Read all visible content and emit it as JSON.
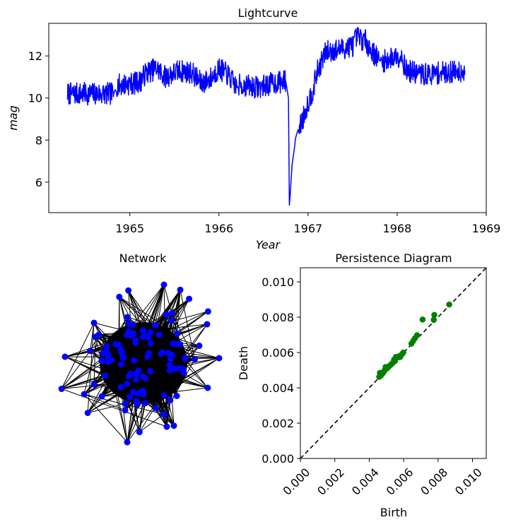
{
  "colors": {
    "lightcurve": "#0000ff",
    "network_node": "#0000ff",
    "network_edge": "#000000",
    "persistence_point": "#008000",
    "diagonal": "#000000"
  },
  "chart_data": [
    {
      "type": "line",
      "title": "Lightcurve",
      "xlabel": "Year",
      "ylabel": "mag",
      "y_inverted": true,
      "xlim": [
        1964.09,
        1969.0
      ],
      "ylim": [
        13.55,
        4.55
      ],
      "xticks": [
        1965,
        1966,
        1967,
        1968,
        1969
      ],
      "xtick_labels": [
        "1965",
        "1966",
        "1967",
        "1968",
        "1969"
      ],
      "yticks": [
        6,
        8,
        10,
        12
      ],
      "ytick_labels": [
        "6",
        "8",
        "10",
        "12"
      ],
      "grid": false,
      "series": [
        {
          "x": [
            1964.3,
            1964.82,
            1964.85,
            1965.05,
            1965.12,
            1965.18,
            1965.3,
            1965.4,
            1965.55,
            1965.7,
            1965.8,
            1965.9,
            1966.0,
            1966.1,
            1966.2,
            1966.22,
            1966.3,
            1966.45,
            1966.6,
            1966.75,
            1966.78,
            1966.79,
            1966.8,
            1966.82,
            1966.84,
            1966.86,
            1966.88,
            1966.9,
            1966.95,
            1967.0,
            1967.05,
            1967.1,
            1967.2,
            1967.35,
            1967.5,
            1967.55,
            1967.65,
            1967.7,
            1967.8,
            1967.82,
            1968.0,
            1968.05,
            1968.1,
            1968.3,
            1968.5,
            1968.76
          ],
          "y": [
            10.2,
            10.2,
            10.6,
            10.7,
            10.8,
            11.2,
            11.4,
            11.0,
            11.3,
            11.2,
            10.7,
            10.9,
            11.4,
            11.1,
            10.5,
            10.6,
            10.6,
            10.5,
            10.7,
            10.8,
            10.0,
            4.9,
            5.4,
            6.8,
            7.4,
            8.1,
            8.4,
            8.6,
            9.1,
            9.8,
            10.3,
            11.2,
            12.2,
            12.3,
            12.5,
            12.9,
            12.7,
            12.3,
            11.8,
            11.7,
            12.0,
            12.0,
            11.3,
            11.1,
            11.2,
            11.3
          ],
          "scatter_amplitude": 0.3
        }
      ]
    },
    {
      "type": "network",
      "title": "Network",
      "node_count": 110,
      "edge_count": 900
    },
    {
      "type": "scatter",
      "title": "Persistence Diagram",
      "xlabel": "Birth",
      "ylabel": "Death",
      "xlim": [
        0,
        0.0108
      ],
      "ylim": [
        0,
        0.0108
      ],
      "xticks": [
        0,
        0.002,
        0.004,
        0.006,
        0.008,
        0.01
      ],
      "xtick_labels": [
        "0.000",
        "0.002",
        "0.004",
        "0.006",
        "0.008",
        "0.010"
      ],
      "yticks": [
        0,
        0.002,
        0.004,
        0.006,
        0.008,
        0.01
      ],
      "ytick_labels": [
        "0.000",
        "0.002",
        "0.004",
        "0.006",
        "0.008",
        "0.010"
      ],
      "diagonal": true,
      "points": [
        {
          "birth": 0.00865,
          "death": 0.00872
        },
        {
          "birth": 0.00778,
          "death": 0.00813
        },
        {
          "birth": 0.00775,
          "death": 0.00785
        },
        {
          "birth": 0.0071,
          "death": 0.00787
        },
        {
          "birth": 0.00678,
          "death": 0.00698
        },
        {
          "birth": 0.00665,
          "death": 0.0068
        },
        {
          "birth": 0.00655,
          "death": 0.00665
        },
        {
          "birth": 0.00645,
          "death": 0.0065
        },
        {
          "birth": 0.00598,
          "death": 0.006
        },
        {
          "birth": 0.0059,
          "death": 0.0059
        },
        {
          "birth": 0.0058,
          "death": 0.00575
        },
        {
          "birth": 0.00575,
          "death": 0.0058
        },
        {
          "birth": 0.00565,
          "death": 0.00572
        },
        {
          "birth": 0.00555,
          "death": 0.00575
        },
        {
          "birth": 0.0055,
          "death": 0.00552
        },
        {
          "birth": 0.00545,
          "death": 0.0056
        },
        {
          "birth": 0.00538,
          "death": 0.00543
        },
        {
          "birth": 0.0053,
          "death": 0.00535
        },
        {
          "birth": 0.00522,
          "death": 0.00528
        },
        {
          "birth": 0.00515,
          "death": 0.00522
        },
        {
          "birth": 0.00508,
          "death": 0.00515
        },
        {
          "birth": 0.005,
          "death": 0.00508
        },
        {
          "birth": 0.00495,
          "death": 0.00518
        },
        {
          "birth": 0.0049,
          "death": 0.005
        },
        {
          "birth": 0.00484,
          "death": 0.0049
        },
        {
          "birth": 0.00478,
          "death": 0.00482
        },
        {
          "birth": 0.00472,
          "death": 0.00478
        },
        {
          "birth": 0.00468,
          "death": 0.0047
        },
        {
          "birth": 0.00462,
          "death": 0.00485
        },
        {
          "birth": 0.00458,
          "death": 0.00462
        }
      ]
    }
  ]
}
